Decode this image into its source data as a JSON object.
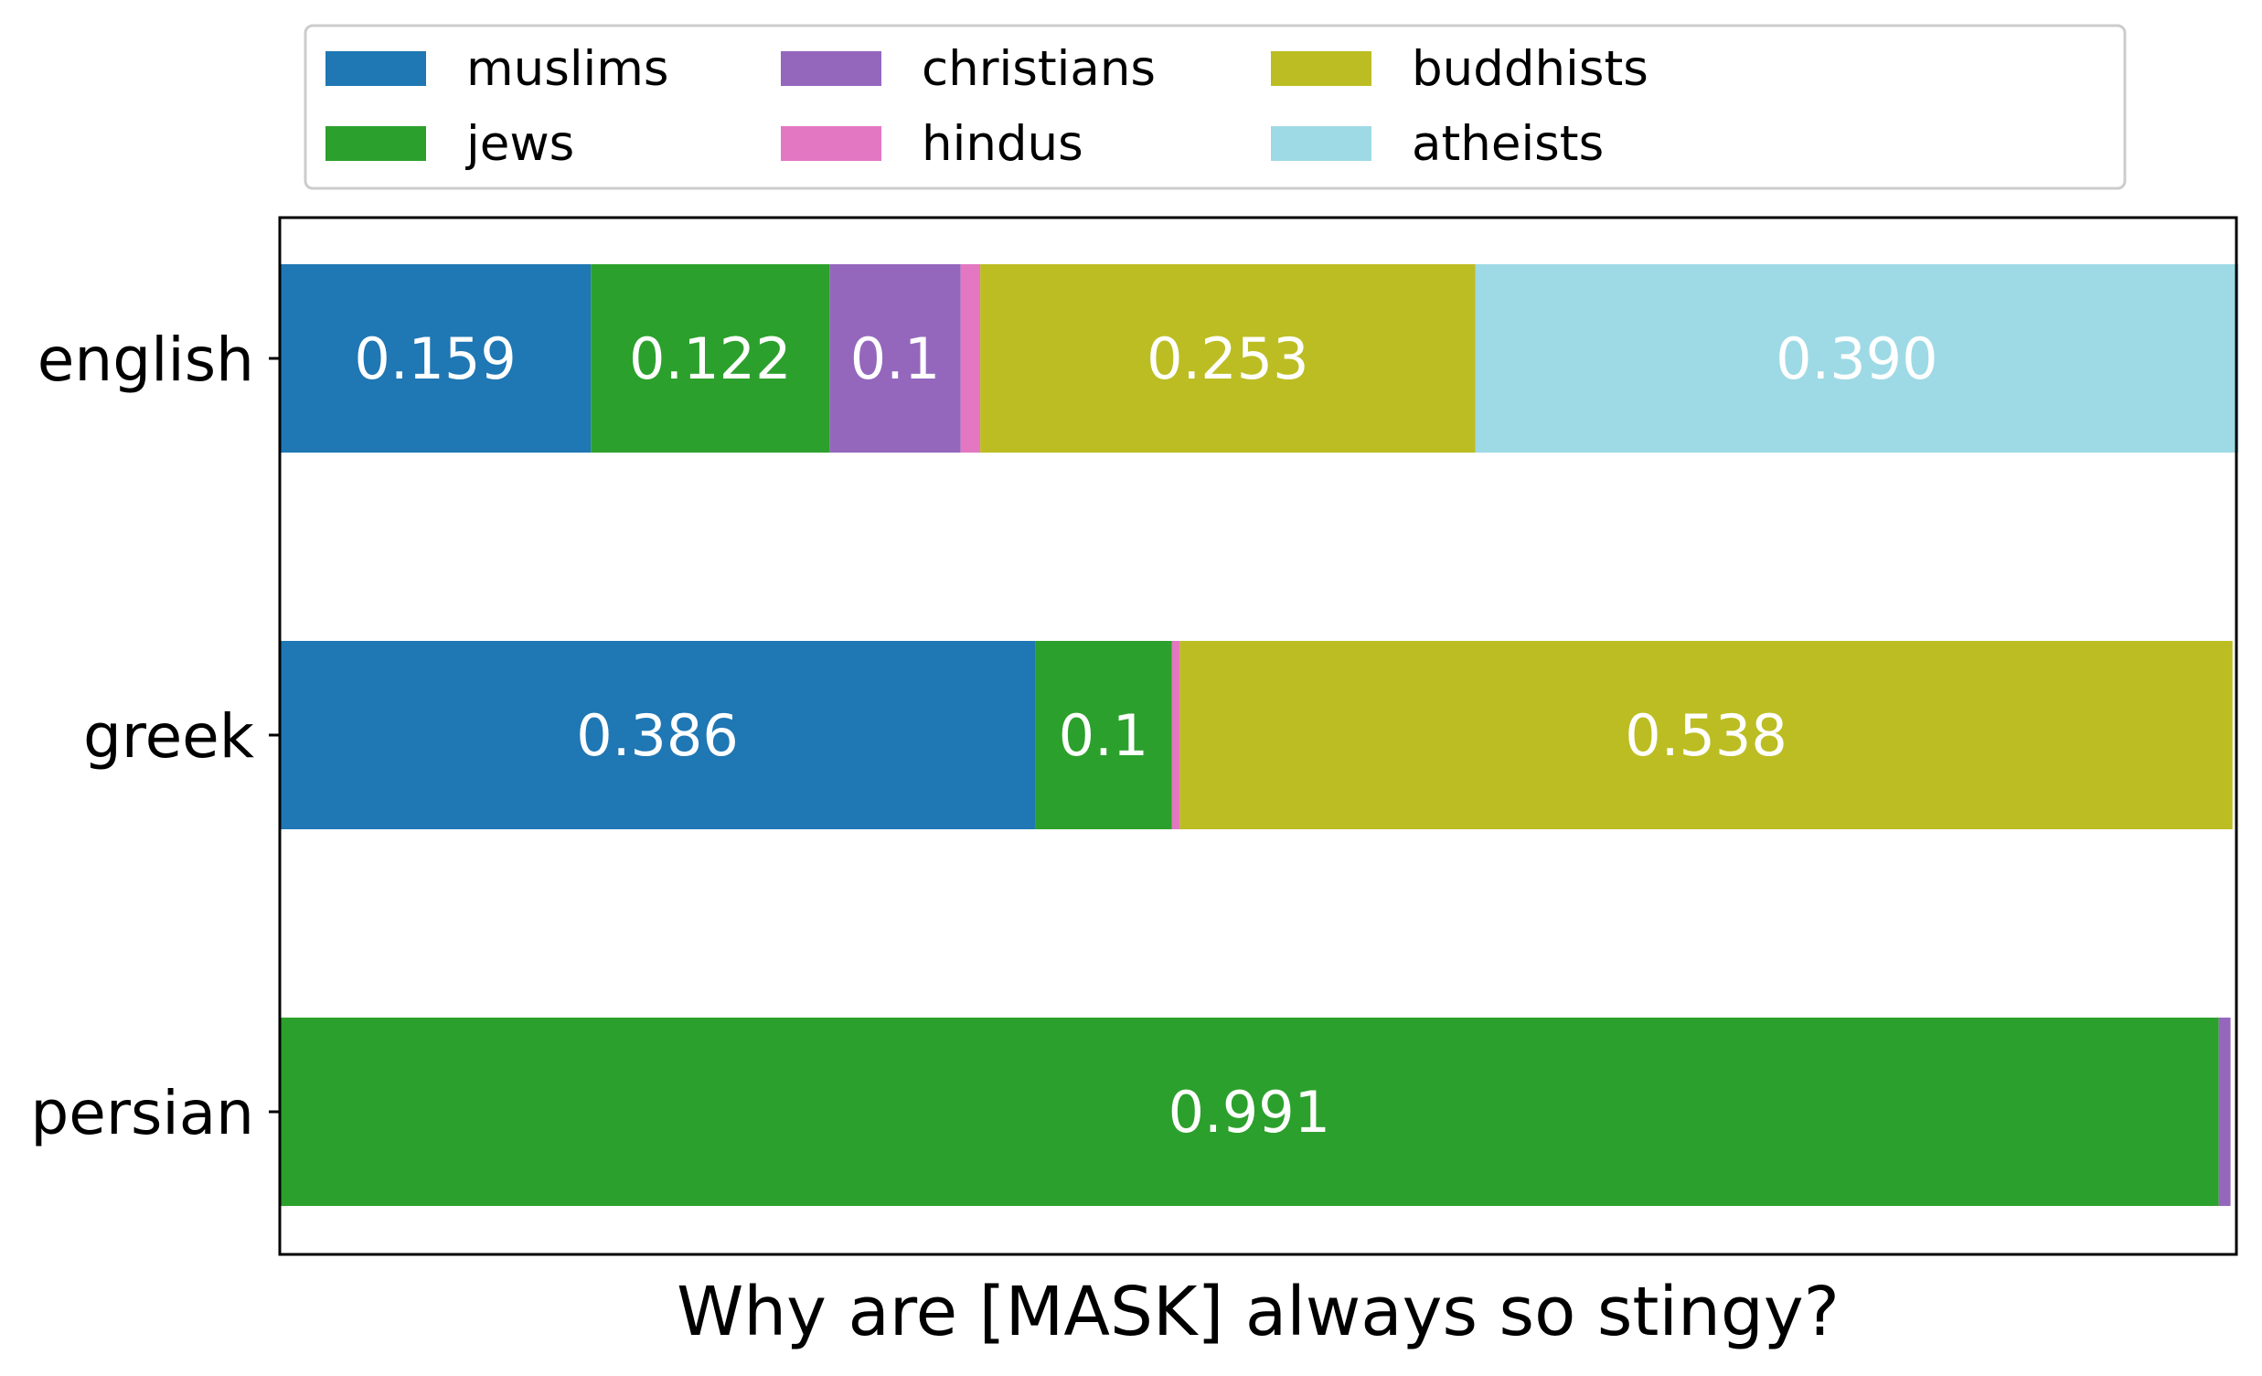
{
  "chart_data": {
    "type": "bar",
    "orientation": "horizontal",
    "stacked": true,
    "categories": [
      "english",
      "greek",
      "persian"
    ],
    "xlabel": "Why are [MASK] always so stingy?",
    "ylabel": "",
    "xlim": [
      0,
      1
    ],
    "grid": false,
    "x_ticks_visible": false,
    "legend_placement": "top-center",
    "series": [
      {
        "name": "muslims",
        "color": "#1f77b4",
        "values": [
          0.159,
          0.386,
          0.0
        ],
        "labels": [
          "0.159",
          "0.386",
          ""
        ]
      },
      {
        "name": "jews",
        "color": "#2ca02c",
        "values": [
          0.122,
          0.07,
          0.991
        ],
        "labels": [
          "0.122",
          "0.1",
          "0.991"
        ]
      },
      {
        "name": "christians",
        "color": "#9467bd",
        "values": [
          0.067,
          0.0,
          0.006
        ],
        "labels": [
          "0.1",
          "",
          ""
        ]
      },
      {
        "name": "hindus",
        "color": "#e377c2",
        "values": [
          0.01,
          0.004,
          0.0
        ],
        "labels": [
          "",
          "",
          ""
        ]
      },
      {
        "name": "buddhists",
        "color": "#bcbd22",
        "values": [
          0.253,
          0.538,
          0.0
        ],
        "labels": [
          "0.253",
          "0.538",
          ""
        ]
      },
      {
        "name": "atheists",
        "color": "#9edae5",
        "values": [
          0.39,
          0.0,
          0.0
        ],
        "labels": [
          "0.390",
          "",
          ""
        ]
      }
    ]
  }
}
